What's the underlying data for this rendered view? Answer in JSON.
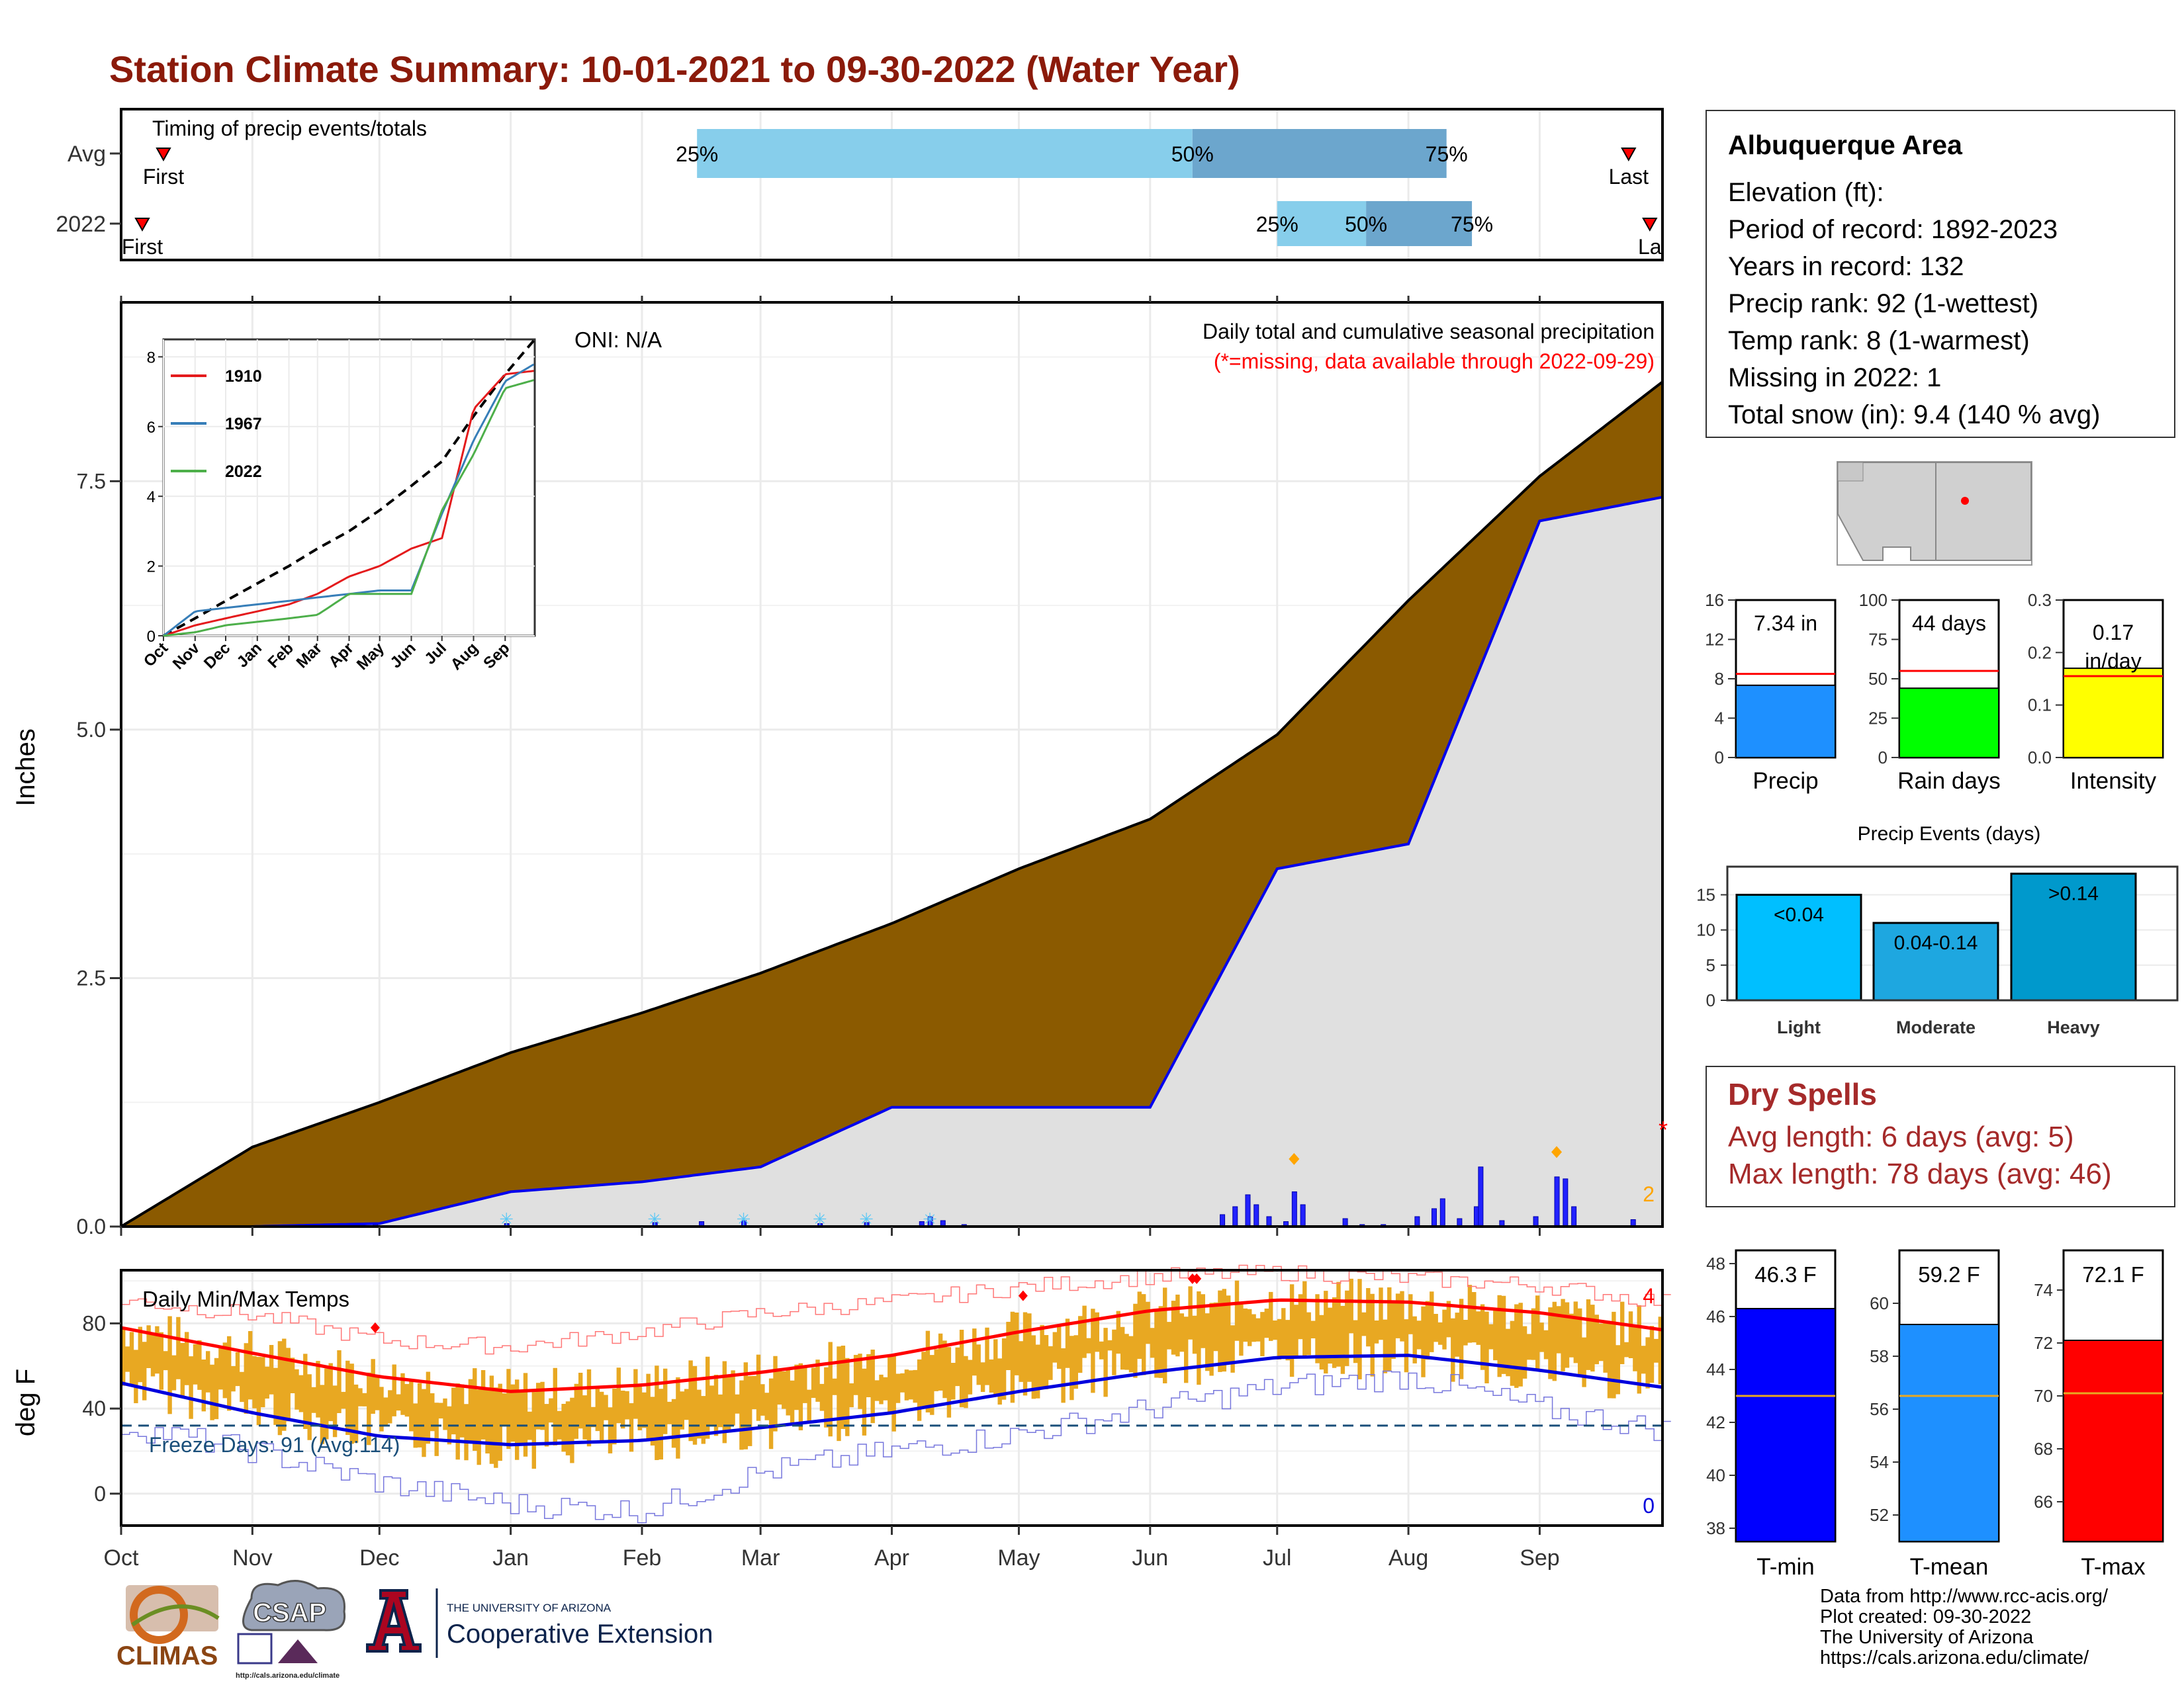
{
  "title": "Station Climate Summary: 10-01-2021 to 09-30-2022 (Water Year)",
  "colors": {
    "title": "#8B1A0A",
    "brown_fill": "#8B5A00",
    "grey_fill": "#E0E0E0",
    "blue_line": "#0000EE",
    "orange_bars": "#E8A822",
    "light_blue": "#87CEEB",
    "mid_blue": "#6CA6CD",
    "dry_red": "#A52A2A"
  },
  "months": [
    "Oct",
    "Nov",
    "Dec",
    "Jan",
    "Feb",
    "Mar",
    "Apr",
    "May",
    "Jun",
    "Jul",
    "Aug",
    "Sep"
  ],
  "timing": {
    "title": "Timing of precip events/totals",
    "rows": [
      "Avg",
      "2022"
    ],
    "avg": {
      "first_label": "First",
      "last_label": "Last",
      "p25": "25%",
      "p50": "50%",
      "p75": "75%",
      "first_day": 10,
      "p25_day": 136,
      "p50_day": 253,
      "p75_day": 313,
      "last_day": 356
    },
    "y2022": {
      "first_label": "First",
      "last_label": "La",
      "p25": "25%",
      "p50": "50%",
      "p75": "75%",
      "first_day": 5,
      "p25_day": 273,
      "p50_day": 294,
      "p75_day": 319,
      "last_day": 361
    }
  },
  "precip": {
    "oni": "ONI: N/A",
    "caption": "Daily total and cumulative seasonal precipitation",
    "missing_note": "(*=missing, data available through 2022-09-29)",
    "ylabel": "Inches",
    "yticks": [
      "0.0",
      "2.5",
      "5.0",
      "7.5"
    ],
    "star": "*",
    "two_label": "2"
  },
  "inset": {
    "yticks": [
      "0",
      "2",
      "4",
      "6",
      "8"
    ],
    "months": [
      "Oct",
      "Nov",
      "Dec",
      "Jan",
      "Feb",
      "Mar",
      "Apr",
      "May",
      "Jun",
      "Jul",
      "Aug",
      "Sep"
    ],
    "legend": [
      "1910",
      "1967",
      "2022"
    ],
    "legend_colors": [
      "#E41A1C",
      "#377EB8",
      "#4DAF4A"
    ]
  },
  "temps": {
    "title": "Daily Min/Max Temps",
    "ylabel": "deg F",
    "yticks": [
      "0",
      "40",
      "80"
    ],
    "freeze_text": "Freeze Days: 91 (Avg:114)",
    "top_count": "4",
    "bottom_count": "0"
  },
  "info": {
    "name": "Albuquerque Area",
    "lines": [
      "Elevation (ft):",
      "Period of record: 1892-2023",
      "Years in record: 132",
      "Precip rank: 92 (1-wettest)",
      "Temp rank: 8 (1-warmest)",
      "Missing in 2022: 1",
      "Total snow (in): 9.4 (140 % avg)"
    ]
  },
  "mini_bars": [
    {
      "label": "Precip",
      "value_text": "7.34 in",
      "value": 7.34,
      "avg": 8.5,
      "ymax": 16,
      "ticks": [
        "0",
        "4",
        "8",
        "12",
        "16"
      ],
      "color": "#1E90FF"
    },
    {
      "label": "Rain days",
      "value_text": "44 days",
      "value": 44,
      "avg": 55,
      "ymax": 100,
      "ticks": [
        "0",
        "25",
        "50",
        "75",
        "100"
      ],
      "color": "#00FF00"
    },
    {
      "label": "Intensity",
      "value_text": "0.17 in/day",
      "value": 0.17,
      "avg": 0.155,
      "ymax": 0.3,
      "ticks": [
        "0.0",
        "0.1",
        "0.2",
        "0.3"
      ],
      "color": "#FFFF00"
    }
  ],
  "events": {
    "title": "Precip Events (days)",
    "categories": [
      "Light",
      "Moderate",
      "Heavy"
    ],
    "labels": [
      "<0.04",
      "0.04-0.14",
      ">0.14"
    ],
    "values": [
      15,
      11,
      18
    ],
    "ticks": [
      "0",
      "5",
      "10",
      "15"
    ],
    "colors": [
      "#00BFFF",
      "#1EA7E0",
      "#0099CC"
    ]
  },
  "dry_spells": {
    "title": "Dry Spells",
    "lines": [
      "Avg length: 6 days (avg: 5)",
      "Max length: 78 days (avg: 46)"
    ]
  },
  "temp_bars": [
    {
      "label": "T-min",
      "value_text": "46.3 F",
      "value": 46.3,
      "avg": 43.0,
      "ymin": 37.5,
      "ymax": 48.5,
      "ticks": [
        "38",
        "40",
        "42",
        "44",
        "46",
        "48"
      ],
      "color": "#0000FF"
    },
    {
      "label": "T-mean",
      "value_text": "59.2 F",
      "value": 59.2,
      "avg": 56.5,
      "ymin": 51,
      "ymax": 62,
      "ticks": [
        "52",
        "54",
        "56",
        "58",
        "60"
      ],
      "color": "#1E90FF"
    },
    {
      "label": "T-max",
      "value_text": "72.1 F",
      "value": 72.1,
      "avg": 70.1,
      "ymin": 64.5,
      "ymax": 75.5,
      "ticks": [
        "66",
        "68",
        "70",
        "72",
        "74"
      ],
      "color": "#FF0000"
    }
  ],
  "logos": {
    "climas": "CLIMAS",
    "csap": "CSAP",
    "csap_url": "http://cals.arizona.edu/climate",
    "ua_small": "THE UNIVERSITY OF ARIZONA",
    "ua_big": "Cooperative Extension"
  },
  "credits": [
    "Data from http://www.rcc-acis.org/",
    "Plot created: 09-30-2022",
    "The University of Arizona",
    "https://cals.arizona.edu/climate/"
  ],
  "chart_data": [
    {
      "type": "bar",
      "title": "Timing of precip events/totals",
      "categories": [
        "Avg",
        "2022"
      ],
      "series": [
        {
          "name": "25%",
          "values": [
            "Feb 13",
            "Jun 30"
          ]
        },
        {
          "name": "50%",
          "values": [
            "Jun 10",
            "Jul 22"
          ]
        },
        {
          "name": "75%",
          "values": [
            "Aug 9",
            "Aug 15"
          ]
        }
      ]
    },
    {
      "type": "area",
      "title": "Daily total and cumulative seasonal precipitation",
      "ylabel": "Inches",
      "ylim": [
        0,
        9.3
      ],
      "x": [
        "Oct",
        "Nov",
        "Dec",
        "Jan",
        "Feb",
        "Mar",
        "Apr",
        "May",
        "Jun",
        "Jul",
        "Aug",
        "Sep",
        "Sep 30"
      ],
      "series": [
        {
          "name": "avg cumulative",
          "values": [
            0.0,
            0.8,
            1.25,
            1.75,
            2.15,
            2.55,
            3.05,
            3.6,
            4.1,
            4.95,
            6.3,
            7.55,
            8.5
          ]
        },
        {
          "name": "2022 cumulative",
          "values": [
            0.0,
            0.0,
            0.03,
            0.35,
            0.45,
            0.6,
            1.2,
            1.2,
            1.2,
            3.6,
            3.85,
            7.1,
            7.34
          ]
        }
      ]
    },
    {
      "type": "line",
      "ylim": [
        0,
        8.5
      ],
      "x": [
        "Oct",
        "Nov",
        "Dec",
        "Jan",
        "Feb",
        "Mar",
        "Apr",
        "May",
        "Jun",
        "Jul",
        "Aug",
        "Sep",
        "Sep 30"
      ],
      "series": [
        {
          "name": "avg",
          "values": [
            0,
            0.5,
            1.0,
            1.5,
            2.0,
            2.5,
            3.0,
            3.6,
            4.3,
            5.0,
            6.3,
            7.5,
            8.5
          ]
        },
        {
          "name": "1910",
          "values": [
            0,
            0.3,
            0.5,
            0.7,
            0.9,
            1.2,
            1.7,
            2.0,
            2.5,
            2.8,
            6.5,
            7.5,
            7.6
          ]
        },
        {
          "name": "1967",
          "values": [
            0,
            0.7,
            0.8,
            0.9,
            1.0,
            1.1,
            1.2,
            1.3,
            1.3,
            3.5,
            5.6,
            7.3,
            7.8
          ]
        },
        {
          "name": "2022",
          "values": [
            0,
            0.1,
            0.3,
            0.4,
            0.5,
            0.6,
            1.2,
            1.2,
            1.2,
            3.6,
            5.2,
            7.1,
            7.34
          ]
        }
      ]
    },
    {
      "type": "line",
      "title": "Daily Min/Max Temps",
      "ylabel": "deg F",
      "ylim": [
        -15,
        105
      ],
      "x": [
        "Oct",
        "Nov",
        "Dec",
        "Jan",
        "Feb",
        "Mar",
        "Apr",
        "May",
        "Jun",
        "Jul",
        "Aug",
        "Sep",
        "Sep 30"
      ],
      "series": [
        {
          "name": "avg max",
          "values": [
            78,
            66,
            55,
            48,
            51,
            57,
            65,
            76,
            86,
            91,
            90,
            85,
            77
          ]
        },
        {
          "name": "avg min",
          "values": [
            52,
            38,
            27,
            23,
            25,
            31,
            38,
            48,
            57,
            64,
            65,
            58,
            50
          ]
        },
        {
          "name": "record max",
          "values": [
            91,
            84,
            72,
            69,
            76,
            85,
            90,
            97,
            102,
            104,
            101,
            98,
            90
          ]
        },
        {
          "name": "record min",
          "values": [
            32,
            20,
            5,
            -5,
            -8,
            10,
            20,
            28,
            40,
            50,
            55,
            40,
            30
          ]
        }
      ]
    },
    {
      "type": "bar",
      "categories": [
        "Precip"
      ],
      "values": [
        7.34
      ],
      "ylim": [
        0,
        16
      ]
    },
    {
      "type": "bar",
      "categories": [
        "Rain days"
      ],
      "values": [
        44
      ],
      "ylim": [
        0,
        100
      ]
    },
    {
      "type": "bar",
      "categories": [
        "Intensity"
      ],
      "values": [
        0.17
      ],
      "ylim": [
        0,
        0.3
      ]
    },
    {
      "type": "bar",
      "title": "Precip Events (days)",
      "categories": [
        "Light",
        "Moderate",
        "Heavy"
      ],
      "values": [
        15,
        11,
        18
      ],
      "ylim": [
        0,
        19
      ]
    },
    {
      "type": "bar",
      "categories": [
        "T-min"
      ],
      "values": [
        46.3
      ]
    },
    {
      "type": "bar",
      "categories": [
        "T-mean"
      ],
      "values": [
        59.2
      ]
    },
    {
      "type": "bar",
      "categories": [
        "T-max"
      ],
      "values": [
        72.1
      ]
    }
  ]
}
